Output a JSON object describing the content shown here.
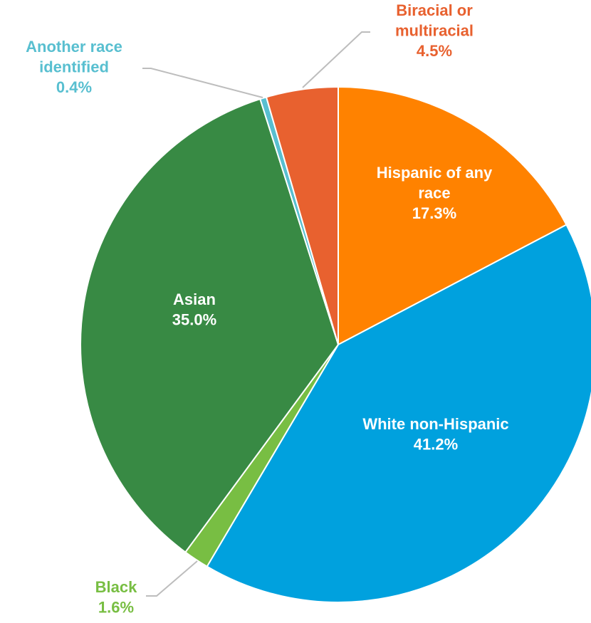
{
  "chart_data": {
    "type": "pie",
    "start_angle_deg": 0,
    "direction": "clockwise",
    "slices": [
      {
        "name": "Hispanic of any race",
        "label_lines": [
          "Hispanic of any",
          "race"
        ],
        "value_label": "17.3%",
        "value": 17.3,
        "color": "#FF8200",
        "label_color": "#ffffff",
        "label_placement": "inside"
      },
      {
        "name": "White non-Hispanic",
        "label_lines": [
          "White non-Hispanic"
        ],
        "value_label": "41.2%",
        "value": 41.2,
        "color": "#00A1DE",
        "label_color": "#ffffff",
        "label_placement": "inside"
      },
      {
        "name": "Black",
        "label_lines": [
          "Black"
        ],
        "value_label": "1.6%",
        "value": 1.6,
        "color": "#78BE43",
        "label_color": "#78BE43",
        "label_placement": "outside"
      },
      {
        "name": "Asian",
        "label_lines": [
          "Asian"
        ],
        "value_label": "35.0%",
        "value": 35.0,
        "color": "#388A44",
        "label_color": "#ffffff",
        "label_placement": "inside"
      },
      {
        "name": "Another race identified",
        "label_lines": [
          "Another race",
          "identified"
        ],
        "value_label": "0.4%",
        "value": 0.4,
        "color": "#58BFD0",
        "label_color": "#58BFD0",
        "label_placement": "outside"
      },
      {
        "name": "Biracial or multiracial",
        "label_lines": [
          "Biracial or",
          "multiracial"
        ],
        "value_label": "4.5%",
        "value": 4.5,
        "color": "#E8612F",
        "label_color": "#E8612F",
        "label_placement": "outside"
      }
    ]
  }
}
